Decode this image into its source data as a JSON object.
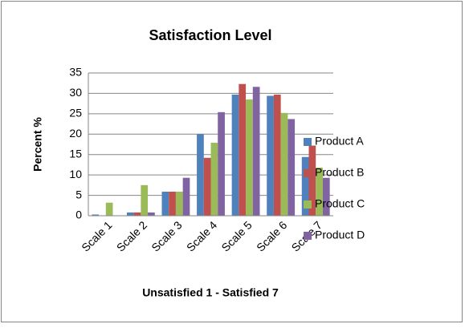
{
  "chart_data": {
    "type": "bar",
    "title": "Satisfaction Level",
    "x_label": "Unsatisfied 1 - Satisfied 7",
    "y_label": "Percent %",
    "categories": [
      "Scale 1",
      "Scale 2",
      "Scale 3",
      "Scale 4",
      "Scale 5",
      "Scale 6",
      "Scale 7"
    ],
    "series": [
      {
        "name": "Product A",
        "color": "#4f81bd",
        "values": [
          0.3,
          0.8,
          5.9,
          20,
          29.7,
          29.4,
          14.4
        ]
      },
      {
        "name": "Product B",
        "color": "#c0504d",
        "values": [
          0,
          0.8,
          5.9,
          14.2,
          32.3,
          29.7,
          17.2
        ]
      },
      {
        "name": "Product C",
        "color": "#9bbb59",
        "values": [
          3.2,
          7.5,
          5.9,
          17.9,
          28.5,
          25.2,
          11.8
        ]
      },
      {
        "name": "Product D",
        "color": "#8064a2",
        "values": [
          0,
          0.8,
          9.3,
          25.4,
          31.6,
          23.7,
          9.3
        ]
      }
    ],
    "ylim": [
      0,
      35
    ],
    "yticks": [
      0,
      5,
      10,
      15,
      20,
      25,
      30,
      35
    ],
    "grid": true,
    "legend": "right"
  }
}
